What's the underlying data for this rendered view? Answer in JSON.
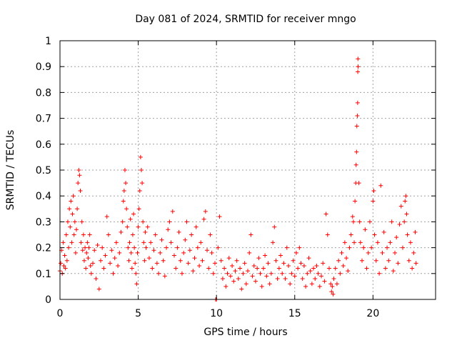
{
  "chart_data": {
    "type": "scatter",
    "title": "Day 081 of 2024, SRMTID for receiver mngo",
    "xlabel": "GPS time / hours",
    "ylabel": "SRMTID / TECUs",
    "xlim": [
      0,
      24
    ],
    "ylim": [
      0,
      1
    ],
    "xticks": [
      0,
      5,
      10,
      15,
      20
    ],
    "xtick_labels": [
      "0",
      "5",
      "10",
      "15",
      "20"
    ],
    "yticks": [
      0,
      0.1,
      0.2,
      0.3,
      0.4,
      0.5,
      0.6,
      0.7,
      0.8,
      0.9,
      1
    ],
    "ytick_labels": [
      "0",
      "0.1",
      "0.2",
      "0.3",
      "0.4",
      "0.5",
      "0.6",
      "0.7",
      "0.8",
      "0.9",
      "1"
    ],
    "grid": true,
    "marker_color": "#ff0000",
    "series": [
      {
        "name": "SRMTID",
        "marker": "plus",
        "points": [
          [
            0.0,
            0.11
          ],
          [
            0.05,
            0.14
          ],
          [
            0.1,
            0.19
          ],
          [
            0.15,
            0.1
          ],
          [
            0.2,
            0.22
          ],
          [
            0.25,
            0.13
          ],
          [
            0.3,
            0.17
          ],
          [
            0.35,
            0.12
          ],
          [
            0.4,
            0.25
          ],
          [
            0.45,
            0.15
          ],
          [
            0.5,
            0.3
          ],
          [
            0.55,
            0.2
          ],
          [
            0.6,
            0.35
          ],
          [
            0.65,
            0.28
          ],
          [
            0.7,
            0.38
          ],
          [
            0.75,
            0.22
          ],
          [
            0.8,
            0.33
          ],
          [
            0.85,
            0.4
          ],
          [
            0.9,
            0.25
          ],
          [
            0.95,
            0.3
          ],
          [
            1.0,
            0.18
          ],
          [
            1.05,
            0.27
          ],
          [
            1.1,
            0.35
          ],
          [
            1.15,
            0.45
          ],
          [
            1.2,
            0.5
          ],
          [
            1.25,
            0.48
          ],
          [
            1.3,
            0.42
          ],
          [
            1.35,
            0.22
          ],
          [
            1.4,
            0.3
          ],
          [
            1.45,
            0.19
          ],
          [
            1.5,
            0.25
          ],
          [
            1.55,
            0.15
          ],
          [
            1.6,
            0.2
          ],
          [
            1.65,
            0.12
          ],
          [
            1.7,
            0.18
          ],
          [
            1.75,
            0.22
          ],
          [
            1.8,
            0.16
          ],
          [
            1.85,
            0.2
          ],
          [
            1.9,
            0.25
          ],
          [
            1.95,
            0.13
          ],
          [
            2.0,
            0.1
          ],
          [
            2.1,
            0.14
          ],
          [
            2.2,
            0.19
          ],
          [
            2.3,
            0.08
          ],
          [
            2.4,
            0.21
          ],
          [
            2.5,
            0.04
          ],
          [
            2.6,
            0.15
          ],
          [
            2.7,
            0.2
          ],
          [
            2.8,
            0.12
          ],
          [
            2.9,
            0.17
          ],
          [
            3.0,
            0.32
          ],
          [
            3.1,
            0.25
          ],
          [
            3.2,
            0.14
          ],
          [
            3.3,
            0.19
          ],
          [
            3.4,
            0.1
          ],
          [
            3.5,
            0.16
          ],
          [
            3.6,
            0.22
          ],
          [
            3.7,
            0.13
          ],
          [
            3.8,
            0.18
          ],
          [
            3.9,
            0.26
          ],
          [
            4.0,
            0.3
          ],
          [
            4.05,
            0.38
          ],
          [
            4.1,
            0.42
          ],
          [
            4.15,
            0.5
          ],
          [
            4.2,
            0.45
          ],
          [
            4.25,
            0.35
          ],
          [
            4.3,
            0.28
          ],
          [
            4.35,
            0.2
          ],
          [
            4.4,
            0.15
          ],
          [
            4.45,
            0.22
          ],
          [
            4.5,
            0.31
          ],
          [
            4.55,
            0.18
          ],
          [
            4.6,
            0.12
          ],
          [
            4.65,
            0.25
          ],
          [
            4.7,
            0.33
          ],
          [
            4.75,
            0.2
          ],
          [
            4.8,
            0.14
          ],
          [
            4.85,
            0.1
          ],
          [
            4.9,
            0.06
          ],
          [
            4.95,
            0.18
          ],
          [
            5.0,
            0.28
          ],
          [
            5.05,
            0.35
          ],
          [
            5.1,
            0.42
          ],
          [
            5.15,
            0.55
          ],
          [
            5.2,
            0.5
          ],
          [
            5.25,
            0.45
          ],
          [
            5.3,
            0.3
          ],
          [
            5.35,
            0.22
          ],
          [
            5.4,
            0.15
          ],
          [
            5.45,
            0.26
          ],
          [
            5.5,
            0.2
          ],
          [
            5.6,
            0.28
          ],
          [
            5.7,
            0.16
          ],
          [
            5.8,
            0.22
          ],
          [
            5.9,
            0.12
          ],
          [
            6.0,
            0.19
          ],
          [
            6.1,
            0.25
          ],
          [
            6.2,
            0.14
          ],
          [
            6.3,
            0.1
          ],
          [
            6.4,
            0.18
          ],
          [
            6.5,
            0.23
          ],
          [
            6.6,
            0.15
          ],
          [
            6.7,
            0.09
          ],
          [
            6.8,
            0.2
          ],
          [
            6.9,
            0.27
          ],
          [
            7.0,
            0.3
          ],
          [
            7.1,
            0.22
          ],
          [
            7.2,
            0.34
          ],
          [
            7.3,
            0.17
          ],
          [
            7.4,
            0.12
          ],
          [
            7.5,
            0.2
          ],
          [
            7.6,
            0.26
          ],
          [
            7.7,
            0.15
          ],
          [
            7.8,
            0.1
          ],
          [
            7.9,
            0.18
          ],
          [
            8.0,
            0.23
          ],
          [
            8.1,
            0.3
          ],
          [
            8.2,
            0.14
          ],
          [
            8.3,
            0.19
          ],
          [
            8.4,
            0.25
          ],
          [
            8.5,
            0.11
          ],
          [
            8.6,
            0.16
          ],
          [
            8.7,
            0.28
          ],
          [
            8.8,
            0.2
          ],
          [
            8.9,
            0.13
          ],
          [
            9.0,
            0.22
          ],
          [
            9.1,
            0.15
          ],
          [
            9.2,
            0.31
          ],
          [
            9.3,
            0.34
          ],
          [
            9.4,
            0.19
          ],
          [
            9.5,
            0.12
          ],
          [
            9.6,
            0.25
          ],
          [
            9.7,
            0.18
          ],
          [
            9.8,
            0.1
          ],
          [
            9.9,
            0.14
          ],
          [
            9.95,
            0.0
          ],
          [
            10.0,
            0.0
          ],
          [
            10.1,
            0.2
          ],
          [
            10.2,
            0.32
          ],
          [
            10.3,
            0.15
          ],
          [
            10.4,
            0.08
          ],
          [
            10.5,
            0.12
          ],
          [
            10.6,
            0.05
          ],
          [
            10.7,
            0.1
          ],
          [
            10.8,
            0.16
          ],
          [
            10.9,
            0.09
          ],
          [
            11.0,
            0.13
          ],
          [
            11.1,
            0.07
          ],
          [
            11.2,
            0.11
          ],
          [
            11.3,
            0.15
          ],
          [
            11.4,
            0.08
          ],
          [
            11.5,
            0.12
          ],
          [
            11.6,
            0.04
          ],
          [
            11.7,
            0.1
          ],
          [
            11.8,
            0.14
          ],
          [
            11.9,
            0.06
          ],
          [
            12.0,
            0.11
          ],
          [
            12.1,
            0.18
          ],
          [
            12.2,
            0.25
          ],
          [
            12.3,
            0.09
          ],
          [
            12.4,
            0.13
          ],
          [
            12.5,
            0.07
          ],
          [
            12.6,
            0.12
          ],
          [
            12.7,
            0.16
          ],
          [
            12.8,
            0.1
          ],
          [
            12.9,
            0.05
          ],
          [
            13.0,
            0.12
          ],
          [
            13.1,
            0.17
          ],
          [
            13.2,
            0.09
          ],
          [
            13.3,
            0.14
          ],
          [
            13.4,
            0.06
          ],
          [
            13.5,
            0.1
          ],
          [
            13.6,
            0.22
          ],
          [
            13.7,
            0.28
          ],
          [
            13.8,
            0.15
          ],
          [
            13.9,
            0.08
          ],
          [
            14.0,
            0.12
          ],
          [
            14.1,
            0.17
          ],
          [
            14.2,
            0.1
          ],
          [
            14.3,
            0.14
          ],
          [
            14.4,
            0.08
          ],
          [
            14.5,
            0.2
          ],
          [
            14.6,
            0.13
          ],
          [
            14.7,
            0.06
          ],
          [
            14.8,
            0.1
          ],
          [
            14.9,
            0.15
          ],
          [
            15.0,
            0.09
          ],
          [
            15.1,
            0.18
          ],
          [
            15.2,
            0.12
          ],
          [
            15.3,
            0.2
          ],
          [
            15.4,
            0.14
          ],
          [
            15.5,
            0.08
          ],
          [
            15.6,
            0.13
          ],
          [
            15.7,
            0.05
          ],
          [
            15.8,
            0.1
          ],
          [
            15.9,
            0.16
          ],
          [
            16.0,
            0.11
          ],
          [
            16.1,
            0.06
          ],
          [
            16.2,
            0.12
          ],
          [
            16.3,
            0.08
          ],
          [
            16.4,
            0.13
          ],
          [
            16.5,
            0.1
          ],
          [
            16.6,
            0.05
          ],
          [
            16.7,
            0.09
          ],
          [
            16.8,
            0.14
          ],
          [
            16.9,
            0.07
          ],
          [
            17.0,
            0.33
          ],
          [
            17.1,
            0.25
          ],
          [
            17.2,
            0.12
          ],
          [
            17.3,
            0.06
          ],
          [
            17.35,
            0.03
          ],
          [
            17.4,
            0.05
          ],
          [
            17.45,
            0.02
          ],
          [
            17.5,
            0.08
          ],
          [
            17.6,
            0.12
          ],
          [
            17.7,
            0.06
          ],
          [
            17.8,
            0.15
          ],
          [
            17.9,
            0.1
          ],
          [
            18.0,
            0.18
          ],
          [
            18.1,
            0.13
          ],
          [
            18.2,
            0.22
          ],
          [
            18.3,
            0.16
          ],
          [
            18.4,
            0.11
          ],
          [
            18.5,
            0.2
          ],
          [
            18.6,
            0.25
          ],
          [
            18.7,
            0.32
          ],
          [
            18.75,
            0.3
          ],
          [
            18.8,
            0.22
          ],
          [
            18.85,
            0.38
          ],
          [
            18.9,
            0.45
          ],
          [
            18.92,
            0.52
          ],
          [
            18.95,
            0.57
          ],
          [
            18.97,
            0.67
          ],
          [
            19.0,
            0.71
          ],
          [
            19.02,
            0.76
          ],
          [
            19.03,
            0.88
          ],
          [
            19.04,
            0.93
          ],
          [
            19.05,
            0.9
          ],
          [
            19.1,
            0.45
          ],
          [
            19.15,
            0.3
          ],
          [
            19.2,
            0.22
          ],
          [
            19.3,
            0.15
          ],
          [
            19.4,
            0.2
          ],
          [
            19.5,
            0.27
          ],
          [
            19.6,
            0.12
          ],
          [
            19.7,
            0.18
          ],
          [
            19.8,
            0.3
          ],
          [
            19.9,
            0.2
          ],
          [
            20.0,
            0.38
          ],
          [
            20.05,
            0.42
          ],
          [
            20.1,
            0.25
          ],
          [
            20.2,
            0.15
          ],
          [
            20.3,
            0.22
          ],
          [
            20.4,
            0.1
          ],
          [
            20.5,
            0.44
          ],
          [
            20.6,
            0.18
          ],
          [
            20.7,
            0.26
          ],
          [
            20.8,
            0.12
          ],
          [
            20.9,
            0.2
          ],
          [
            21.0,
            0.15
          ],
          [
            21.1,
            0.22
          ],
          [
            21.2,
            0.3
          ],
          [
            21.3,
            0.11
          ],
          [
            21.4,
            0.18
          ],
          [
            21.5,
            0.24
          ],
          [
            21.6,
            0.14
          ],
          [
            21.7,
            0.29
          ],
          [
            21.8,
            0.36
          ],
          [
            21.9,
            0.2
          ],
          [
            22.0,
            0.3
          ],
          [
            22.05,
            0.38
          ],
          [
            22.1,
            0.4
          ],
          [
            22.15,
            0.33
          ],
          [
            22.2,
            0.25
          ],
          [
            22.3,
            0.15
          ],
          [
            22.4,
            0.22
          ],
          [
            22.5,
            0.12
          ],
          [
            22.6,
            0.18
          ],
          [
            22.7,
            0.26
          ],
          [
            22.75,
            0.14
          ]
        ]
      }
    ]
  }
}
